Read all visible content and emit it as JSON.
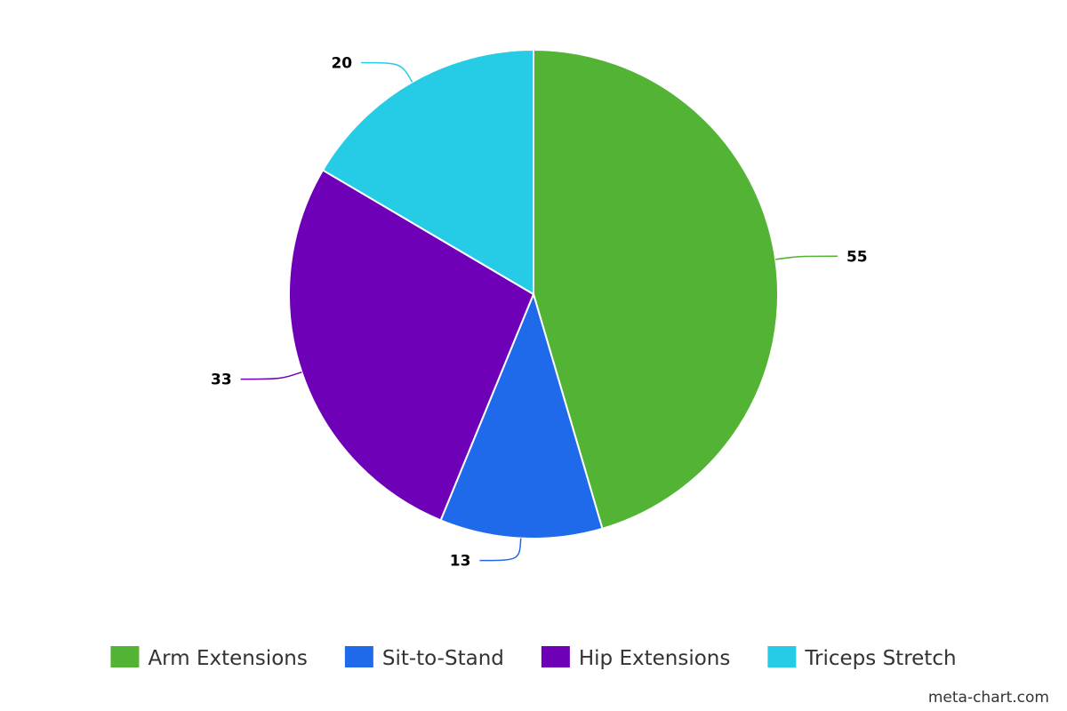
{
  "chart_data": {
    "type": "pie",
    "title": "",
    "categories": [
      "Arm Extensions",
      "Sit-to-Stand",
      "Hip Extensions",
      "Triceps Stretch"
    ],
    "values": [
      55,
      13,
      33,
      20
    ],
    "colors": [
      "#52b334",
      "#1f6aeb",
      "#6e00b8",
      "#26cce6"
    ],
    "start_angle_deg": 0,
    "direction": "clockwise",
    "data_labels": true,
    "legend_position": "bottom"
  },
  "credit": "meta-chart.com"
}
